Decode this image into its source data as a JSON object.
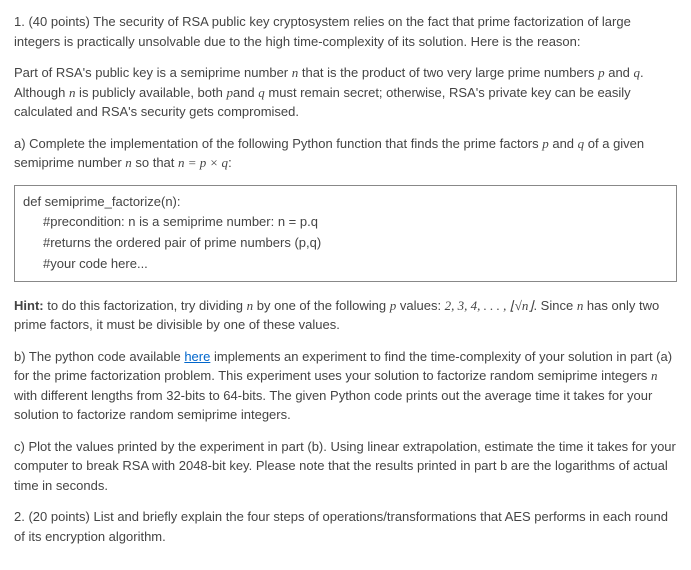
{
  "q1": {
    "intro": "1. (40 points) The security of RSA public key cryptosystem relies on the fact that prime factorization of large integers is practically unsolvable due to the high time-complexity of its solution. Here is the reason:",
    "para2_pre": "Part of RSA's public key is a semiprime number ",
    "n": "n",
    "para2_mid1": " that is the product of two very large prime numbers ",
    "p": "p",
    "and": " and ",
    "q": "q",
    "para2_mid2": ". Although ",
    "para2_mid3": " is publicly available, both ",
    "pand": "p",
    "para2_mid4": "and ",
    "para2_end": " must remain secret; otherwise, RSA's private key can be easily calculated and RSA's security gets compromised.",
    "a_pre": "a) Complete the implementation of the following Python function that finds the prime factors ",
    "a_mid": " of a given semiprime number ",
    "a_sothat": " so that ",
    "a_eq": "n = p × q",
    "a_colon": ":",
    "code": {
      "l1": "def semiprime_factorize(n):",
      "l2": "#precondition: n is a semiprime number: n = p.q",
      "l3": "#returns the ordered pair of prime numbers (p,q)",
      "l4": "#your code here..."
    },
    "hint_label": "Hint:",
    "hint_pre": " to do this factorization, try dividing ",
    "hint_mid1": " by one of the following ",
    "hint_mid2": " values: ",
    "hint_vals": "2, 3, 4, . . . , ⌊√n⌋",
    "hint_since": ". Since ",
    "hint_end": " has only two prime factors, it must be divisible by one of these values.",
    "b_pre": "b) The python code available ",
    "b_link": "here",
    "b_post": " implements an experiment to find the time-complexity of your solution in part (a) for the prime factorization problem. This experiment uses your solution to factorize random semiprime integers ",
    "b_end": " with different lengths from 32-bits to 64-bits. The given Python code prints out the average time it takes for your solution to factorize random semiprime integers.",
    "c": "c) Plot the values printed by the experiment in part (b). Using linear extrapolation, estimate the time it takes for your computer to break RSA with 2048-bit key. Please note that the results printed in part b are the logarithms of actual time in seconds."
  },
  "q2": "2. (20 points) List and briefly explain the four steps of operations/transformations that AES performs in each round of its encryption algorithm.",
  "colors": {
    "text": "#444444",
    "border": "#888888",
    "link": "#0066cc",
    "bg": "#ffffff"
  },
  "fontsize_pt": 10
}
